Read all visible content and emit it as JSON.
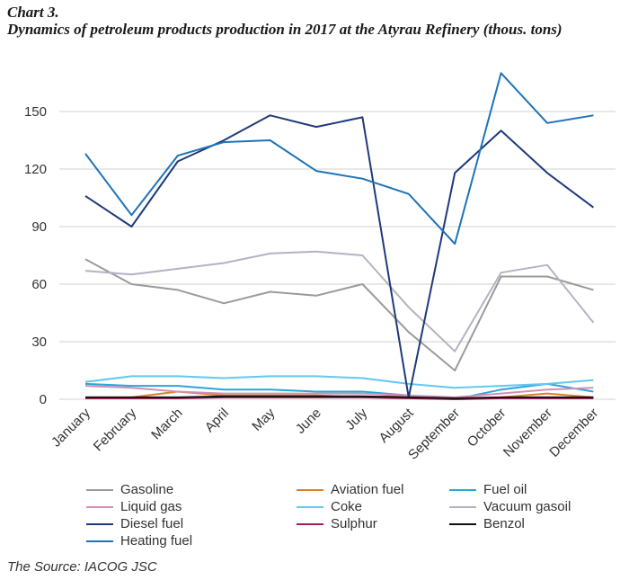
{
  "header": {
    "label": "Chart 3.",
    "title": "Dynamics of petroleum products production in 2017 at the Atyrau Refinery (thous. tons)"
  },
  "source": "The Source: IACOG JSC",
  "chart_data": {
    "type": "line",
    "title": "Dynamics of petroleum products production in 2017 at the Atyrau Refinery (thous. tons)",
    "xlabel": "",
    "ylabel": "",
    "ylim": [
      0,
      170
    ],
    "yticks": [
      0,
      30,
      60,
      90,
      120,
      150
    ],
    "grid": true,
    "legend_position": "bottom",
    "categories": [
      "January",
      "February",
      "March",
      "April",
      "May",
      "June",
      "July",
      "August",
      "September",
      "October",
      "November",
      "December"
    ],
    "series": [
      {
        "name": "Gasoline",
        "color": "#9b9b9b",
        "values": [
          73,
          60,
          57,
          50,
          56,
          54,
          60,
          35,
          15,
          64,
          64,
          57
        ]
      },
      {
        "name": "Aviation fuel",
        "color": "#d9822b",
        "values": [
          1,
          1,
          4,
          2,
          2,
          2,
          1,
          2,
          0,
          1,
          3,
          1
        ]
      },
      {
        "name": "Fuel oil",
        "color": "#2aa6d9",
        "values": [
          8,
          7,
          7,
          5,
          5,
          4,
          4,
          2,
          0,
          5,
          8,
          4
        ]
      },
      {
        "name": "Liquid gas",
        "color": "#d18fb7",
        "values": [
          7,
          6,
          4,
          3,
          3,
          3,
          3,
          2,
          1,
          3,
          5,
          6
        ]
      },
      {
        "name": "Coke",
        "color": "#63c8ee",
        "values": [
          9,
          12,
          12,
          11,
          12,
          12,
          11,
          8,
          6,
          7,
          8,
          10
        ]
      },
      {
        "name": "Vacuum gasoil",
        "color": "#b3b3c4",
        "values": [
          67,
          65,
          68,
          71,
          76,
          77,
          75,
          48,
          25,
          66,
          70,
          40
        ]
      },
      {
        "name": "Diesel fuel",
        "color": "#1f3a7a",
        "values": [
          106,
          90,
          124,
          135,
          148,
          142,
          147,
          1,
          118,
          140,
          118,
          100
        ]
      },
      {
        "name": "Sulphur",
        "color": "#a51a5b",
        "values": [
          0.5,
          0.5,
          0.5,
          1,
          1,
          1,
          1,
          0.5,
          0,
          0.5,
          0.5,
          0.5
        ]
      },
      {
        "name": "Benzol",
        "color": "#111111",
        "values": [
          1,
          1,
          1,
          1.5,
          1.5,
          1.5,
          1.5,
          1,
          0.5,
          1,
          1,
          1
        ]
      },
      {
        "name": "Heating fuel",
        "color": "#1e73b8",
        "values": [
          128,
          96,
          127,
          134,
          135,
          119,
          115,
          107,
          81,
          170,
          144,
          148
        ]
      }
    ]
  }
}
